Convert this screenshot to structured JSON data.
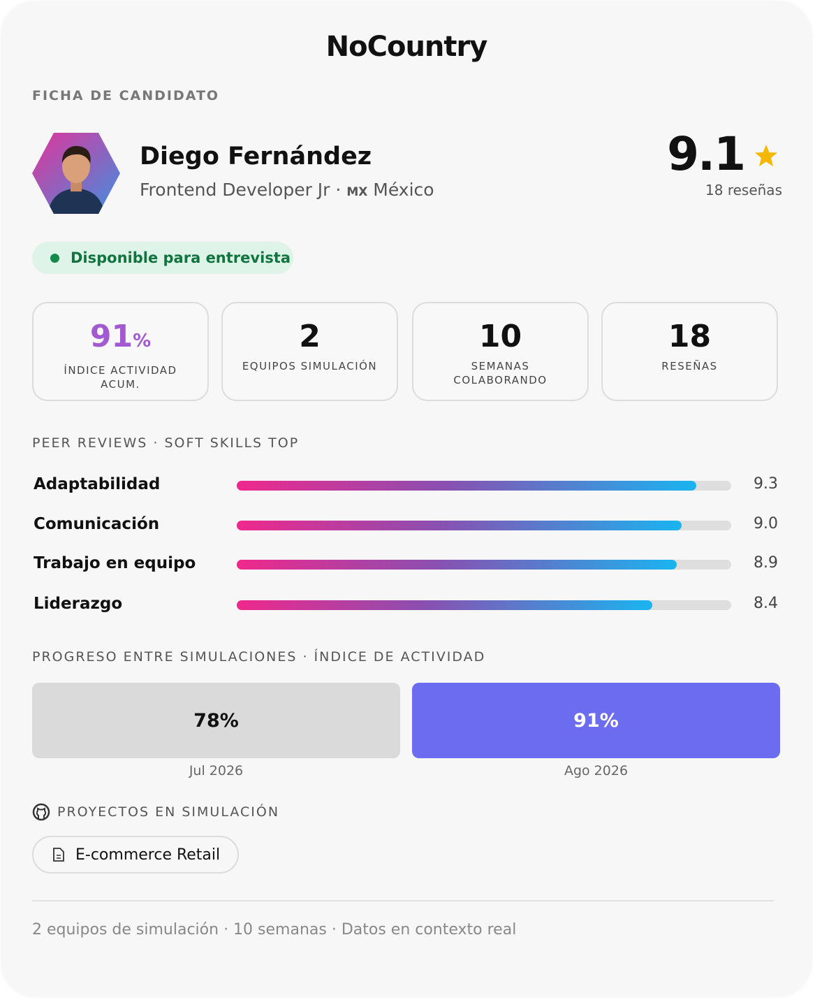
{
  "header": {
    "logo": "NoCountry",
    "section": "FICHA DE CANDIDATO"
  },
  "profile": {
    "name": "Diego Fernández",
    "role": "Frontend Developer Jr",
    "separator": "·",
    "flag": "MX",
    "country": "México",
    "rating": "9.1",
    "reviews": "18 reseñas",
    "status": "Disponible para entrevista"
  },
  "stats": [
    {
      "value": "91",
      "unit": "%",
      "label": "ÍNDICE ACTIVIDAD ACUM."
    },
    {
      "value": "2",
      "label": "EQUIPOS SIMULACIÓN"
    },
    {
      "value": "10",
      "label": "SEMANAS COLABORANDO"
    },
    {
      "value": "18",
      "label": "RESEÑAS"
    }
  ],
  "skills": {
    "title": "PEER REVIEWS · SOFT SKILLS TOP",
    "xlim": [
      0,
      10
    ],
    "categories": [
      "Adaptabilidad",
      "Comunicación",
      "Trabajo en equipo",
      "Liderazgo"
    ],
    "values": [
      9.3,
      9.0,
      8.9,
      8.4
    ],
    "value_labels": [
      "9.3",
      "9.0",
      "8.9",
      "8.4"
    ]
  },
  "progress": {
    "title": "PROGRESO ENTRE SIMULACIONES · ÍNDICE DE ACTIVIDAD",
    "items": [
      {
        "value": "78%",
        "period": "Jul 2026"
      },
      {
        "value": "91%",
        "period": "Ago 2026"
      }
    ]
  },
  "projects": {
    "title": "PROYECTOS EN SIMULACIÓN",
    "items": [
      "E-commerce Retail"
    ]
  },
  "footer": "2 equipos de simulación · 10 semanas · Datos en contexto real"
}
